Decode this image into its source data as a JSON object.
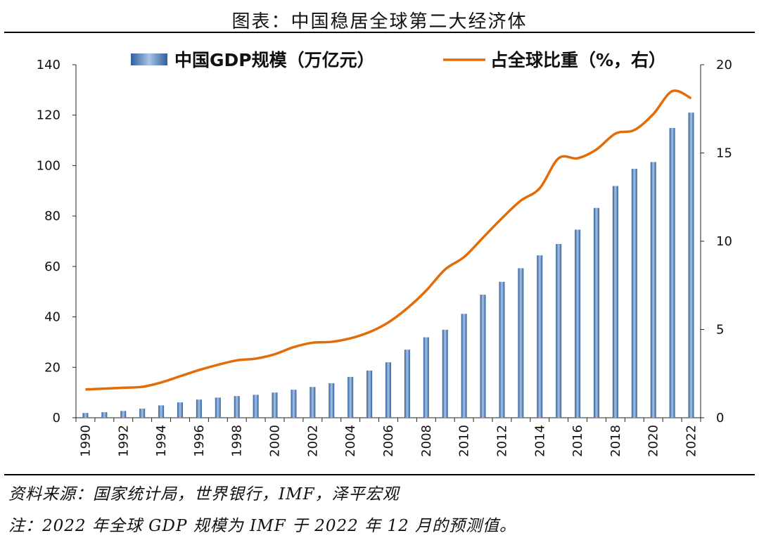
{
  "title": "图表：中国稳居全球第二大经济体",
  "notes": {
    "source": "资料来源：国家统计局，世界银行，IMF，泽平宏观",
    "footnote": "注：2022 年全球 GDP 规模为 IMF 于 2022 年 12 月的预测值。"
  },
  "chart_data": {
    "type": "bar+line",
    "legend": {
      "placement": "top"
    },
    "categories": [
      "1990",
      "1991",
      "1992",
      "1993",
      "1994",
      "1995",
      "1996",
      "1997",
      "1998",
      "1999",
      "2000",
      "2001",
      "2002",
      "2003",
      "2004",
      "2005",
      "2006",
      "2007",
      "2008",
      "2009",
      "2010",
      "2011",
      "2012",
      "2013",
      "2014",
      "2015",
      "2016",
      "2017",
      "2018",
      "2019",
      "2020",
      "2021",
      "2022"
    ],
    "x_tick_labels": [
      "1990",
      "1992",
      "1994",
      "1996",
      "1998",
      "2000",
      "2002",
      "2004",
      "2006",
      "2008",
      "2010",
      "2012",
      "2014",
      "2016",
      "2018",
      "2020",
      "2022"
    ],
    "series": [
      {
        "name": "中国GDP规模（万亿元）",
        "kind": "bar",
        "axis": "left",
        "color": "#4f81bd",
        "values": [
          1.9,
          2.2,
          2.7,
          3.6,
          4.9,
          6.1,
          7.2,
          8.0,
          8.6,
          9.1,
          10.0,
          11.1,
          12.2,
          13.7,
          16.2,
          18.7,
          22.0,
          27.0,
          31.9,
          34.9,
          41.2,
          48.8,
          53.9,
          59.3,
          64.4,
          68.9,
          74.6,
          83.2,
          91.9,
          98.7,
          101.4,
          114.9,
          121.0
        ]
      },
      {
        "name": "占全球比重（%，右）",
        "kind": "line",
        "axis": "right",
        "color": "#e36c09",
        "values": [
          1.6,
          1.65,
          1.7,
          1.75,
          2.0,
          2.35,
          2.7,
          3.0,
          3.25,
          3.35,
          3.6,
          4.0,
          4.25,
          4.3,
          4.5,
          4.85,
          5.4,
          6.2,
          7.2,
          8.4,
          9.1,
          10.2,
          11.3,
          12.3,
          13.0,
          14.7,
          14.7,
          15.2,
          16.1,
          16.3,
          17.2,
          18.5,
          18.1
        ]
      }
    ],
    "left_axis": {
      "ylim": [
        0,
        140
      ],
      "ticks": [
        "0",
        "20",
        "40",
        "60",
        "80",
        "100",
        "120",
        "140"
      ]
    },
    "right_axis": {
      "ylim": [
        0,
        20
      ],
      "ticks": [
        "0",
        "5",
        "10",
        "15",
        "20"
      ]
    },
    "grid": false
  }
}
